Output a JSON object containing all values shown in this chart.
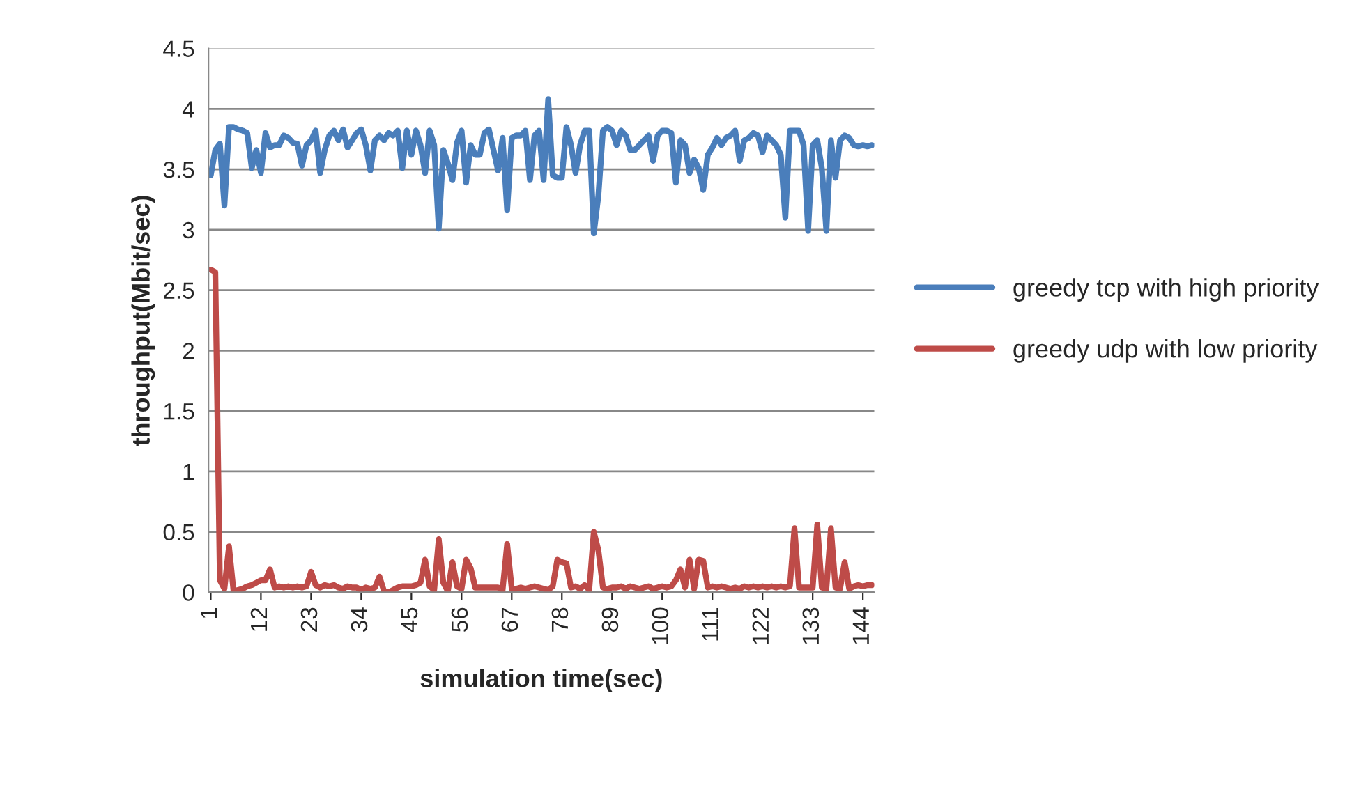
{
  "chart_data": {
    "type": "line",
    "xlabel": "simulation time(sec)",
    "ylabel": "throughput(Mbit/sec)",
    "categories": [
      "1",
      null,
      null,
      null,
      null,
      null,
      null,
      null,
      null,
      null,
      null,
      "12",
      null,
      null,
      null,
      null,
      null,
      null,
      null,
      null,
      null,
      null,
      "23",
      null,
      null,
      null,
      null,
      null,
      null,
      null,
      null,
      null,
      null,
      "34",
      null,
      null,
      null,
      null,
      null,
      null,
      null,
      null,
      null,
      null,
      "45",
      null,
      null,
      null,
      null,
      null,
      null,
      null,
      null,
      null,
      null,
      "56",
      null,
      null,
      null,
      null,
      null,
      null,
      null,
      null,
      null,
      null,
      "67",
      null,
      null,
      null,
      null,
      null,
      null,
      null,
      null,
      null,
      null,
      "78",
      null,
      null,
      null,
      null,
      null,
      null,
      null,
      null,
      null,
      null,
      "89",
      null,
      null,
      null,
      null,
      null,
      null,
      null,
      null,
      null,
      null,
      "100",
      null,
      null,
      null,
      null,
      null,
      null,
      null,
      null,
      null,
      null,
      "111",
      null,
      null,
      null,
      null,
      null,
      null,
      null,
      null,
      null,
      null,
      "122",
      null,
      null,
      null,
      null,
      null,
      null,
      null,
      null,
      null,
      null,
      "133",
      null,
      null,
      null,
      null,
      null,
      null,
      null,
      null,
      null,
      null,
      "144",
      null,
      null
    ],
    "series": [
      {
        "name": "greedy tcp with high priority",
        "color": "#4a7ebb",
        "values": [
          3.45,
          3.66,
          3.71,
          3.2,
          3.85,
          3.85,
          3.83,
          3.82,
          3.8,
          3.51,
          3.66,
          3.47,
          3.8,
          3.68,
          3.7,
          3.7,
          3.78,
          3.76,
          3.72,
          3.71,
          3.53,
          3.7,
          3.74,
          3.82,
          3.47,
          3.66,
          3.78,
          3.82,
          3.74,
          3.83,
          3.68,
          3.74,
          3.8,
          3.83,
          3.7,
          3.49,
          3.74,
          3.78,
          3.74,
          3.8,
          3.78,
          3.82,
          3.51,
          3.82,
          3.62,
          3.82,
          3.7,
          3.47,
          3.82,
          3.7,
          3.01,
          3.66,
          3.55,
          3.41,
          3.72,
          3.82,
          3.39,
          3.7,
          3.62,
          3.62,
          3.8,
          3.83,
          3.66,
          3.49,
          3.76,
          3.16,
          3.76,
          3.78,
          3.78,
          3.82,
          3.41,
          3.78,
          3.82,
          3.41,
          4.08,
          3.45,
          3.43,
          3.43,
          3.85,
          3.7,
          3.47,
          3.7,
          3.82,
          3.82,
          2.97,
          3.28,
          3.82,
          3.85,
          3.82,
          3.7,
          3.82,
          3.78,
          3.66,
          3.66,
          3.7,
          3.74,
          3.78,
          3.57,
          3.78,
          3.82,
          3.82,
          3.8,
          3.39,
          3.74,
          3.7,
          3.47,
          3.58,
          3.51,
          3.33,
          3.62,
          3.68,
          3.76,
          3.7,
          3.76,
          3.78,
          3.82,
          3.57,
          3.74,
          3.76,
          3.8,
          3.78,
          3.64,
          3.78,
          3.74,
          3.7,
          3.62,
          3.1,
          3.82,
          3.82,
          3.82,
          3.7,
          2.99,
          3.7,
          3.74,
          3.51,
          2.99,
          3.74,
          3.43,
          3.74,
          3.78,
          3.76,
          3.7,
          3.69,
          3.7,
          3.69,
          3.7
        ]
      },
      {
        "name": "greedy udp with low priority",
        "color": "#be4b48",
        "values": [
          2.67,
          2.65,
          0.1,
          0.03,
          0.38,
          0.01,
          0.02,
          0.03,
          0.05,
          0.06,
          0.08,
          0.1,
          0.1,
          0.19,
          0.04,
          0.05,
          0.04,
          0.05,
          0.04,
          0.05,
          0.04,
          0.05,
          0.17,
          0.06,
          0.04,
          0.06,
          0.05,
          0.06,
          0.04,
          0.03,
          0.05,
          0.04,
          0.04,
          0.02,
          0.04,
          0.03,
          0.04,
          0.13,
          0.01,
          0.0,
          0.02,
          0.04,
          0.05,
          0.05,
          0.05,
          0.06,
          0.08,
          0.27,
          0.05,
          0.02,
          0.44,
          0.08,
          0.01,
          0.25,
          0.05,
          0.03,
          0.27,
          0.2,
          0.04,
          0.04,
          0.04,
          0.04,
          0.04,
          0.04,
          0.02,
          0.4,
          0.03,
          0.03,
          0.04,
          0.03,
          0.04,
          0.05,
          0.04,
          0.03,
          0.02,
          0.05,
          0.27,
          0.25,
          0.24,
          0.04,
          0.05,
          0.03,
          0.06,
          0.02,
          0.5,
          0.35,
          0.04,
          0.03,
          0.04,
          0.04,
          0.05,
          0.03,
          0.05,
          0.04,
          0.03,
          0.04,
          0.05,
          0.03,
          0.04,
          0.05,
          0.04,
          0.05,
          0.1,
          0.19,
          0.04,
          0.27,
          0.03,
          0.27,
          0.26,
          0.04,
          0.05,
          0.04,
          0.05,
          0.04,
          0.03,
          0.04,
          0.03,
          0.05,
          0.04,
          0.05,
          0.04,
          0.05,
          0.04,
          0.05,
          0.04,
          0.05,
          0.04,
          0.05,
          0.53,
          0.04,
          0.04,
          0.04,
          0.04,
          0.56,
          0.04,
          0.03,
          0.53,
          0.04,
          0.03,
          0.25,
          0.03,
          0.05,
          0.06,
          0.05,
          0.06,
          0.06
        ]
      }
    ],
    "ylim": [
      0,
      4.5
    ],
    "yticks": [
      0,
      0.5,
      1,
      1.5,
      2,
      2.5,
      3,
      3.5,
      4,
      4.5
    ],
    "grid": "y",
    "legend": "right",
    "marker": "none",
    "line_style": "solid"
  }
}
